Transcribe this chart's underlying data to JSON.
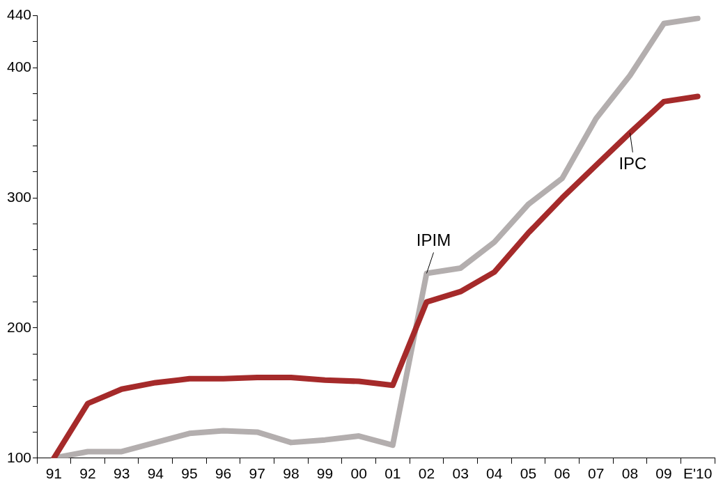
{
  "chart_data": {
    "type": "line",
    "categories": [
      "91",
      "92",
      "93",
      "94",
      "95",
      "96",
      "97",
      "98",
      "99",
      "00",
      "01",
      "02",
      "03",
      "04",
      "05",
      "06",
      "07",
      "08",
      "09",
      "E'10"
    ],
    "series": [
      {
        "name": "IPC",
        "color": "#a52a2a",
        "values": [
          100,
          142,
          153,
          158,
          161,
          161,
          162,
          162,
          160,
          159,
          156,
          220,
          228,
          243,
          273,
          300,
          325,
          350,
          374,
          378
        ]
      },
      {
        "name": "IPIM",
        "color": "#b3aeae",
        "values": [
          100,
          105,
          105,
          112,
          119,
          121,
          120,
          112,
          114,
          117,
          110,
          242,
          246,
          266,
          295,
          315,
          361,
          394,
          434,
          438
        ]
      }
    ],
    "ylim": [
      100,
      440
    ],
    "yticks": [
      100,
      {
        "value": 120,
        "label": null
      },
      {
        "value": 140,
        "label": null
      },
      {
        "value": 160,
        "label": null
      },
      {
        "value": 180,
        "label": null
      },
      200,
      {
        "value": 220,
        "label": null
      },
      {
        "value": 240,
        "label": null
      },
      {
        "value": 260,
        "label": null
      },
      {
        "value": 280,
        "label": null
      },
      300,
      {
        "value": 320,
        "label": null
      },
      {
        "value": 340,
        "label": null
      },
      {
        "value": 360,
        "label": null
      },
      {
        "value": 380,
        "label": null
      },
      400,
      {
        "value": 420,
        "label": null
      },
      440
    ],
    "grid": false,
    "legend": false,
    "marker": "none",
    "line_style": "solid"
  }
}
